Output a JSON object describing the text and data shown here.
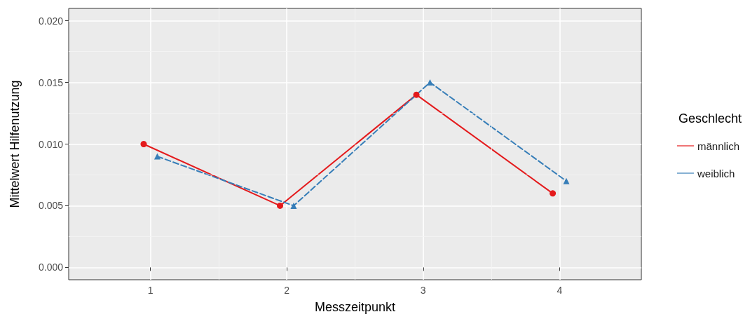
{
  "chart_data": {
    "type": "line",
    "xlabel": "Messzeitpunkt",
    "ylabel": "Mittelwert Hilfenutzung",
    "legend_title": "Geschlecht",
    "legend": "right",
    "grid": true,
    "xlim": [
      0.4,
      4.6
    ],
    "xticks": [
      1,
      2,
      3,
      4
    ],
    "ylim": [
      -0.001,
      0.021
    ],
    "yticks": [
      {
        "value": 0,
        "label": "0.000"
      },
      {
        "value": 0.005,
        "label": "0.005"
      },
      {
        "value": 0.01,
        "label": "0.010"
      },
      {
        "value": 0.015,
        "label": "0.015"
      },
      {
        "value": 0.02,
        "label": "0.020"
      }
    ],
    "series": [
      {
        "name": "männlich",
        "color": "#e41a1c",
        "marker": "circle",
        "line_style": "solid",
        "x": [
          0.95,
          1.95,
          2.95,
          3.95
        ],
        "values": [
          0.01,
          0.005,
          0.014,
          0.006
        ]
      },
      {
        "name": "weiblich",
        "color": "#377eb8",
        "marker": "triangle",
        "line_style": "dashed",
        "x": [
          1.05,
          2.05,
          3.05,
          4.05
        ],
        "values": [
          0.009,
          0.005,
          0.015,
          0.007
        ]
      }
    ]
  }
}
